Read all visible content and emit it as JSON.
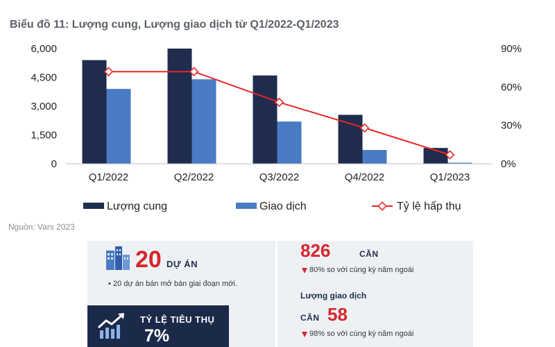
{
  "header": {
    "title": "Biểu đồ 11: Lượng cung, Lượng giao dịch từ Q1/2022-Q1/2023"
  },
  "chart_data": {
    "type": "bar",
    "categories": [
      "Q1/2022",
      "Q2/2022",
      "Q3/2022",
      "Q4/2022",
      "Q1/2023"
    ],
    "series": [
      {
        "name": "Lượng cung",
        "kind": "bar",
        "axis": "left",
        "color": "#1f2c4d",
        "values": [
          5400,
          6000,
          4600,
          2550,
          826
        ]
      },
      {
        "name": "Giao dịch",
        "kind": "bar",
        "axis": "left",
        "color": "#4a7bc4",
        "values": [
          3900,
          4400,
          2200,
          720,
          58
        ]
      },
      {
        "name": "Tỷ lệ hấp thụ",
        "kind": "line",
        "axis": "right",
        "color": "#e8262a",
        "values": [
          72,
          72,
          48,
          28,
          7
        ]
      }
    ],
    "y_left": {
      "min": 0,
      "max": 6000,
      "ticks": [
        0,
        1500,
        3000,
        4500,
        6000
      ],
      "tick_labels": [
        "0",
        "1,500",
        "3,000",
        "4,500",
        "6,000"
      ]
    },
    "y_right": {
      "min": 0,
      "max": 90,
      "ticks": [
        0,
        30,
        60,
        90
      ],
      "tick_labels": [
        "0%",
        "30%",
        "60%",
        "90%"
      ]
    },
    "grid": false,
    "legend_position": "bottom"
  },
  "source": "Nguồn: Vars 2023",
  "summary": {
    "projects": {
      "count": "20",
      "unit": "DỰ ÁN",
      "note": "▪ 20 dự án bán mở bán giai đoạn mới.",
      "icon": "buildings-icon"
    },
    "absorption": {
      "label": "TỶ LỆ TIÊU THỤ",
      "value": "7%",
      "icon": "trend-up-icon"
    },
    "supply": {
      "value": "826",
      "unit": "CĂN",
      "change": "80% so với cùng kỳ năm ngoái"
    },
    "transactions": {
      "label": "Lượng giao dịch",
      "unit": "CĂN",
      "value": "58",
      "change": "98% so với cùng kỳ năm ngoái"
    }
  }
}
